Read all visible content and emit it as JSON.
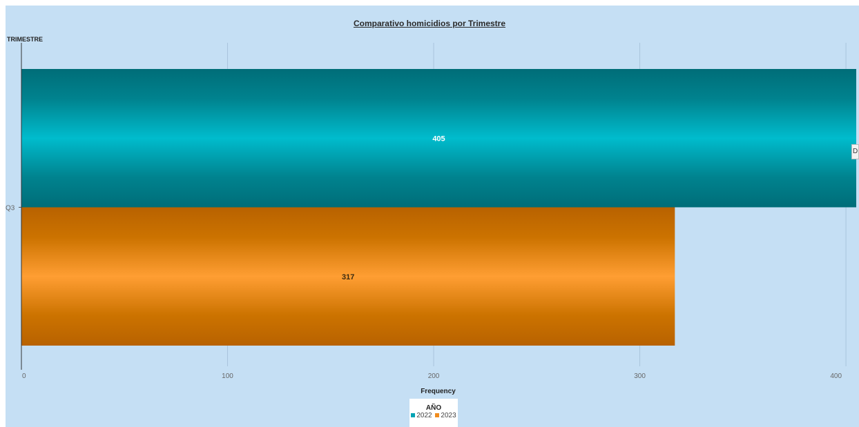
{
  "chart_data": {
    "type": "bar",
    "orientation": "horizontal",
    "title": "Comparativo homicidios por Trimestre",
    "ylabel": "TRIMESTRE",
    "xlabel": "Frequency",
    "categories": [
      "Q3"
    ],
    "series": [
      {
        "name": "2022",
        "values": [
          405
        ],
        "color": "#00a3b4"
      },
      {
        "name": "2023",
        "values": [
          317
        ],
        "color": "#f08c1e"
      }
    ],
    "xlim": [
      0,
      405
    ],
    "x_ticks": [
      0,
      100,
      200,
      300,
      400
    ],
    "grid": true,
    "legend": {
      "title": "AÑO",
      "placement": "bottom-center"
    }
  },
  "side_tab": {
    "label": "D"
  }
}
